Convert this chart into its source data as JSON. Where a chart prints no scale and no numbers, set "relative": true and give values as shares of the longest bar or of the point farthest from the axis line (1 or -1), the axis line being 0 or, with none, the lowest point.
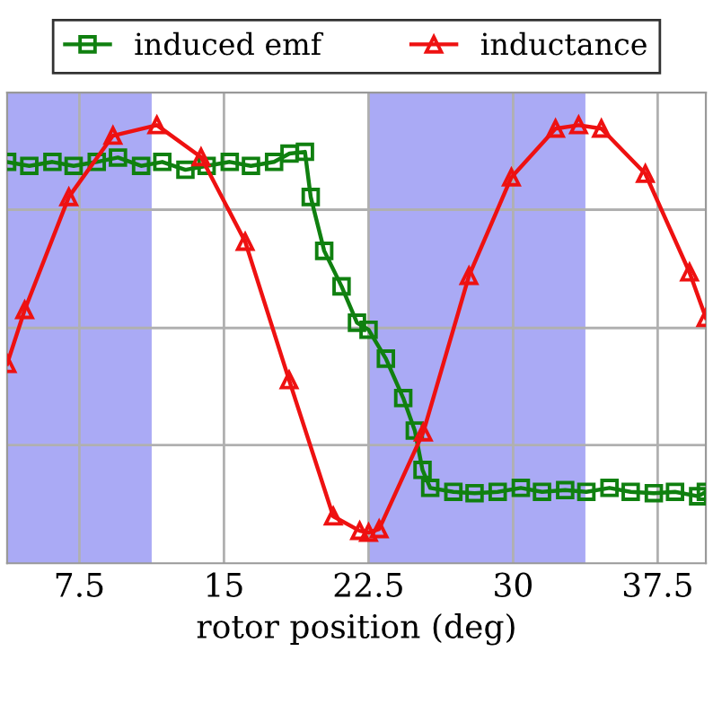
{
  "chart_data": {
    "type": "line",
    "xlabel": "rotor position (deg)",
    "relative": true,
    "xlim": [
      3.75,
      40
    ],
    "xticks": [
      7.5,
      15,
      22.5,
      30,
      37.5
    ],
    "tick_labels": "x",
    "grid": true,
    "legend": "top",
    "line_style": "solid",
    "bands": [
      {
        "axis": "x",
        "from": 3.75,
        "to": 11.25,
        "color": "#aaaaf5"
      },
      {
        "axis": "x",
        "from": 22.5,
        "to": 33.75,
        "color": "#aaaaf5"
      }
    ],
    "series": [
      {
        "name": "induced emf",
        "color": "#108010",
        "marker": "square",
        "x": [
          3.75,
          4.9,
          6.1,
          7.2,
          8.4,
          9.5,
          10.7,
          11.8,
          13.0,
          14.1,
          15.3,
          16.4,
          17.6,
          18.4,
          19.2,
          19.5,
          20.2,
          21.1,
          21.9,
          22.5,
          23.4,
          24.3,
          24.9,
          25.3,
          25.7,
          26.9,
          28.0,
          29.2,
          30.4,
          31.5,
          32.7,
          33.8,
          35.0,
          36.1,
          37.3,
          38.4,
          39.6,
          40
        ],
        "values": [
          0.916,
          0.907,
          0.916,
          0.907,
          0.916,
          0.926,
          0.907,
          0.916,
          0.898,
          0.907,
          0.916,
          0.907,
          0.916,
          0.935,
          0.939,
          0.836,
          0.713,
          0.632,
          0.549,
          0.533,
          0.467,
          0.377,
          0.303,
          0.213,
          0.172,
          0.163,
          0.16,
          0.163,
          0.172,
          0.163,
          0.167,
          0.163,
          0.172,
          0.163,
          0.16,
          0.163,
          0.153,
          0.163
        ]
      },
      {
        "name": "inductance",
        "color": "#ee1111",
        "marker": "triangle",
        "x": [
          3.75,
          4.66,
          6.95,
          9.24,
          11.52,
          13.81,
          16.1,
          18.38,
          20.67,
          22.04,
          22.5,
          23.05,
          25.34,
          27.71,
          29.91,
          32.2,
          33.4,
          34.58,
          36.86,
          39.15,
          40
        ],
        "values": [
          0.455,
          0.578,
          0.836,
          0.976,
          1.0,
          0.927,
          0.734,
          0.418,
          0.107,
          0.074,
          0.07,
          0.078,
          0.299,
          0.656,
          0.881,
          0.992,
          1.0,
          0.992,
          0.889,
          0.664,
          0.56
        ]
      }
    ]
  }
}
